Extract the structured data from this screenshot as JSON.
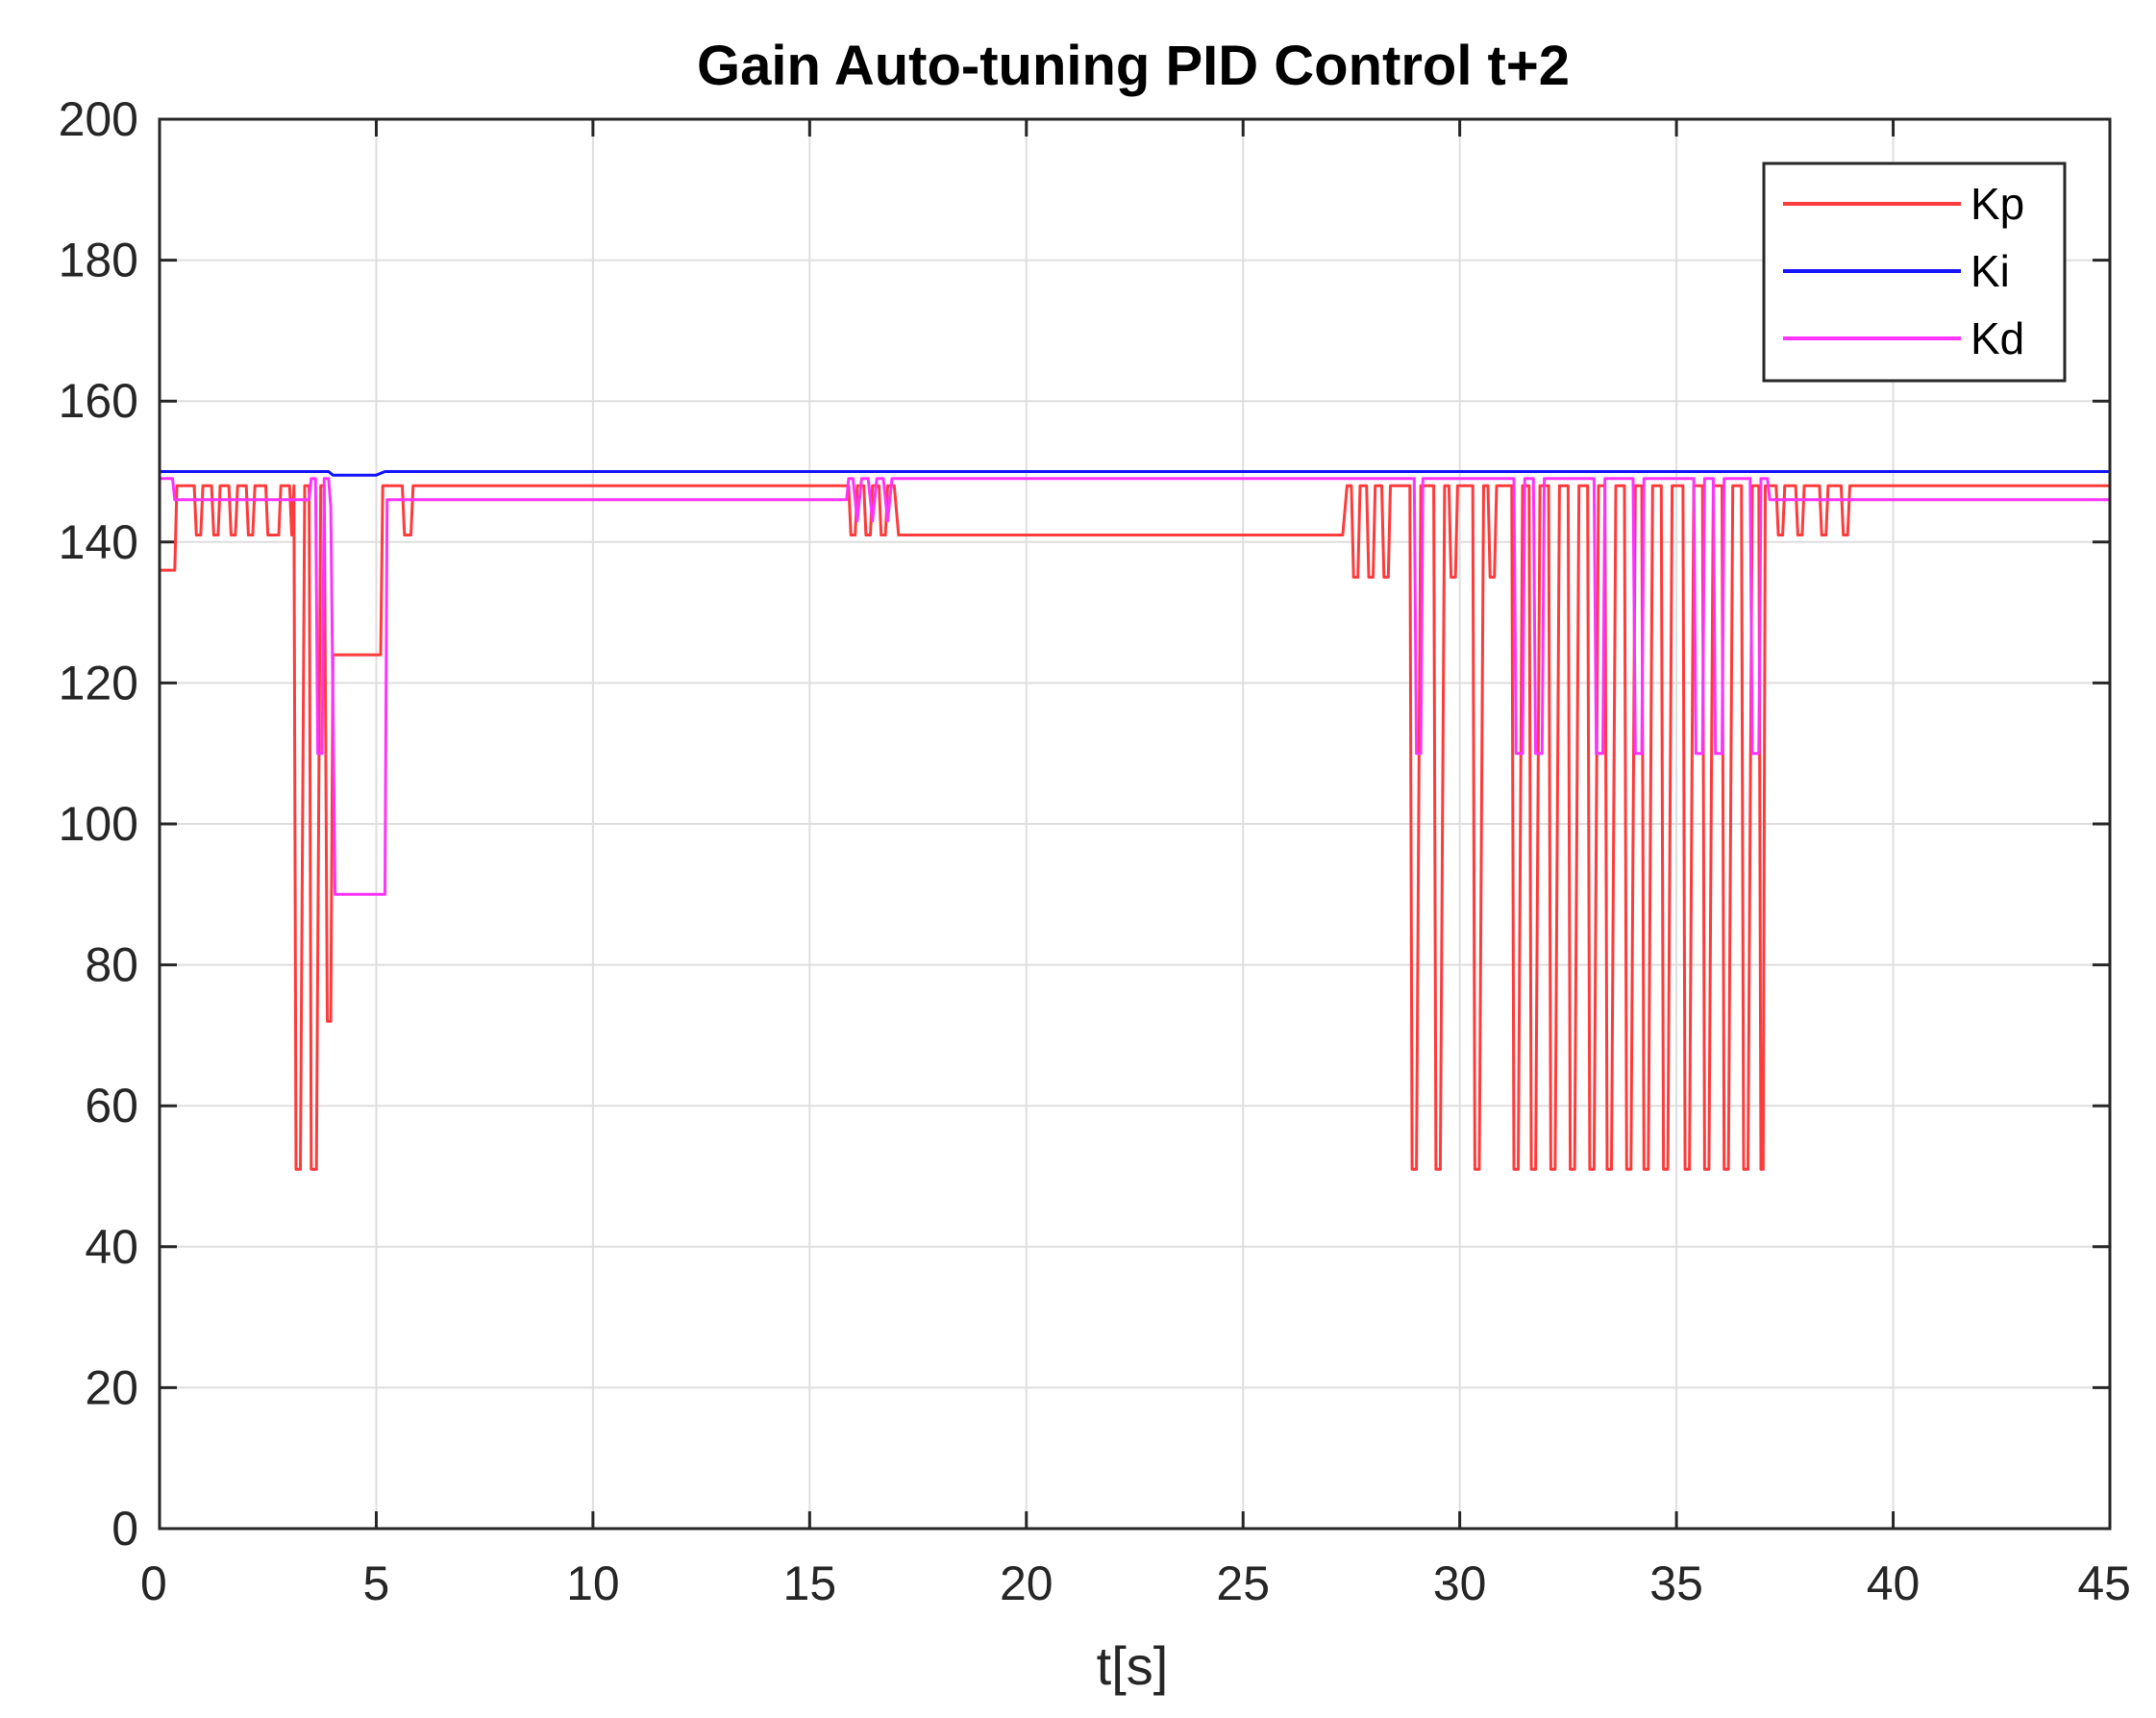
{
  "chart_data": {
    "type": "line",
    "title": "Gain Auto-tuning PID Control t+2",
    "xlabel": "t[s]",
    "ylabel": "",
    "xlim": [
      0,
      45
    ],
    "ylim": [
      0,
      200
    ],
    "xticks": [
      0,
      5,
      10,
      15,
      20,
      25,
      30,
      35,
      40,
      45
    ],
    "yticks": [
      0,
      20,
      40,
      60,
      80,
      100,
      120,
      140,
      160,
      180,
      200
    ],
    "grid": true,
    "legend_position": "top-right",
    "series": [
      {
        "name": "Kp",
        "color": "#ff3b3b",
        "points": [
          [
            0,
            136
          ],
          [
            0.35,
            136
          ],
          [
            0.4,
            148
          ],
          [
            0.5,
            148
          ],
          [
            0.8,
            148
          ],
          [
            0.85,
            141
          ],
          [
            0.95,
            141
          ],
          [
            1.0,
            148
          ],
          [
            1.2,
            148
          ],
          [
            1.25,
            141
          ],
          [
            1.35,
            141
          ],
          [
            1.4,
            148
          ],
          [
            1.6,
            148
          ],
          [
            1.65,
            141
          ],
          [
            1.75,
            141
          ],
          [
            1.8,
            148
          ],
          [
            2.0,
            148
          ],
          [
            2.05,
            141
          ],
          [
            2.15,
            141
          ],
          [
            2.2,
            148
          ],
          [
            2.45,
            148
          ],
          [
            2.5,
            141
          ],
          [
            2.75,
            141
          ],
          [
            2.8,
            148
          ],
          [
            3.0,
            148
          ],
          [
            3.05,
            141
          ],
          [
            3.1,
            148
          ],
          [
            3.15,
            51
          ],
          [
            3.25,
            51
          ],
          [
            3.35,
            148
          ],
          [
            3.45,
            148
          ],
          [
            3.5,
            51
          ],
          [
            3.62,
            51
          ],
          [
            3.72,
            148
          ],
          [
            3.8,
            148
          ],
          [
            3.87,
            72
          ],
          [
            3.95,
            72
          ],
          [
            4.0,
            124
          ],
          [
            5.1,
            124
          ],
          [
            5.15,
            148
          ],
          [
            5.6,
            148
          ],
          [
            5.65,
            141
          ],
          [
            5.8,
            141
          ],
          [
            5.85,
            148
          ],
          [
            15.9,
            148
          ],
          [
            15.95,
            141
          ],
          [
            16.05,
            141
          ],
          [
            16.1,
            148
          ],
          [
            16.25,
            148
          ],
          [
            16.3,
            141
          ],
          [
            16.4,
            141
          ],
          [
            16.45,
            148
          ],
          [
            16.6,
            148
          ],
          [
            16.65,
            141
          ],
          [
            16.75,
            141
          ],
          [
            16.8,
            148
          ],
          [
            16.95,
            148
          ],
          [
            17.05,
            141
          ],
          [
            27.3,
            141
          ],
          [
            27.4,
            148
          ],
          [
            27.5,
            148
          ],
          [
            27.55,
            135
          ],
          [
            27.65,
            135
          ],
          [
            27.7,
            148
          ],
          [
            27.85,
            148
          ],
          [
            27.9,
            135
          ],
          [
            28.0,
            135
          ],
          [
            28.05,
            148
          ],
          [
            28.2,
            148
          ],
          [
            28.25,
            135
          ],
          [
            28.35,
            135
          ],
          [
            28.4,
            148
          ],
          [
            28.85,
            148
          ],
          [
            28.9,
            51
          ],
          [
            29.0,
            51
          ],
          [
            29.1,
            148
          ],
          [
            29.4,
            148
          ],
          [
            29.45,
            51
          ],
          [
            29.55,
            51
          ],
          [
            29.65,
            148
          ],
          [
            29.75,
            148
          ],
          [
            29.8,
            135
          ],
          [
            29.9,
            135
          ],
          [
            29.95,
            148
          ],
          [
            30.3,
            148
          ],
          [
            30.35,
            51
          ],
          [
            30.45,
            51
          ],
          [
            30.55,
            148
          ],
          [
            30.65,
            148
          ],
          [
            30.7,
            135
          ],
          [
            30.8,
            135
          ],
          [
            30.85,
            148
          ],
          [
            31.2,
            148
          ],
          [
            31.25,
            51
          ],
          [
            31.35,
            51
          ],
          [
            31.45,
            148
          ],
          [
            31.6,
            148
          ],
          [
            31.65,
            51
          ],
          [
            31.75,
            51
          ],
          [
            31.85,
            148
          ],
          [
            32.05,
            148
          ],
          [
            32.1,
            51
          ],
          [
            32.2,
            51
          ],
          [
            32.3,
            148
          ],
          [
            32.5,
            148
          ],
          [
            32.55,
            51
          ],
          [
            32.65,
            51
          ],
          [
            32.75,
            148
          ],
          [
            32.95,
            148
          ],
          [
            33.0,
            51
          ],
          [
            33.1,
            51
          ],
          [
            33.2,
            148
          ],
          [
            33.35,
            148
          ],
          [
            33.4,
            51
          ],
          [
            33.5,
            51
          ],
          [
            33.6,
            148
          ],
          [
            33.8,
            148
          ],
          [
            33.85,
            51
          ],
          [
            33.95,
            51
          ],
          [
            34.05,
            148
          ],
          [
            34.2,
            148
          ],
          [
            34.25,
            51
          ],
          [
            34.35,
            51
          ],
          [
            34.45,
            148
          ],
          [
            34.65,
            148
          ],
          [
            34.7,
            51
          ],
          [
            34.8,
            51
          ],
          [
            34.9,
            148
          ],
          [
            35.15,
            148
          ],
          [
            35.2,
            51
          ],
          [
            35.3,
            51
          ],
          [
            35.4,
            148
          ],
          [
            35.6,
            148
          ],
          [
            35.65,
            51
          ],
          [
            35.75,
            51
          ],
          [
            35.85,
            148
          ],
          [
            36.05,
            148
          ],
          [
            36.1,
            51
          ],
          [
            36.2,
            51
          ],
          [
            36.3,
            148
          ],
          [
            36.5,
            148
          ],
          [
            36.55,
            51
          ],
          [
            36.65,
            51
          ],
          [
            36.75,
            148
          ],
          [
            36.9,
            148
          ],
          [
            36.95,
            51
          ],
          [
            37.0,
            51
          ],
          [
            37.05,
            148
          ],
          [
            37.3,
            148
          ],
          [
            37.35,
            141
          ],
          [
            37.45,
            141
          ],
          [
            37.5,
            148
          ],
          [
            37.75,
            148
          ],
          [
            37.8,
            141
          ],
          [
            37.9,
            141
          ],
          [
            37.95,
            148
          ],
          [
            38.3,
            148
          ],
          [
            38.35,
            141
          ],
          [
            38.45,
            141
          ],
          [
            38.5,
            148
          ],
          [
            38.8,
            148
          ],
          [
            38.85,
            141
          ],
          [
            38.95,
            141
          ],
          [
            39.0,
            148
          ],
          [
            45,
            148
          ]
        ]
      },
      {
        "name": "Ki",
        "color": "#1414ff",
        "points": [
          [
            0,
            150
          ],
          [
            3.9,
            150
          ],
          [
            4.0,
            149.5
          ],
          [
            5.0,
            149.5
          ],
          [
            5.2,
            150
          ],
          [
            45,
            150
          ]
        ]
      },
      {
        "name": "Kd",
        "color": "#ff33ff",
        "points": [
          [
            0,
            149
          ],
          [
            0.3,
            149
          ],
          [
            0.35,
            146
          ],
          [
            3.45,
            146
          ],
          [
            3.5,
            149
          ],
          [
            3.6,
            149
          ],
          [
            3.65,
            110
          ],
          [
            3.75,
            110
          ],
          [
            3.8,
            149
          ],
          [
            3.9,
            149
          ],
          [
            3.95,
            145
          ],
          [
            4.05,
            90
          ],
          [
            5.2,
            90
          ],
          [
            5.25,
            146
          ],
          [
            15.85,
            146
          ],
          [
            15.9,
            149
          ],
          [
            16.0,
            149
          ],
          [
            16.1,
            143
          ],
          [
            16.2,
            149
          ],
          [
            16.35,
            149
          ],
          [
            16.45,
            143
          ],
          [
            16.55,
            149
          ],
          [
            16.7,
            149
          ],
          [
            16.8,
            143
          ],
          [
            16.9,
            149
          ],
          [
            27.3,
            149
          ],
          [
            28.95,
            149
          ],
          [
            29.0,
            110
          ],
          [
            29.1,
            110
          ],
          [
            29.15,
            149
          ],
          [
            31.25,
            149
          ],
          [
            31.3,
            110
          ],
          [
            31.45,
            110
          ],
          [
            31.5,
            149
          ],
          [
            31.7,
            149
          ],
          [
            31.75,
            110
          ],
          [
            31.9,
            110
          ],
          [
            31.95,
            149
          ],
          [
            33.1,
            149
          ],
          [
            33.15,
            110
          ],
          [
            33.3,
            110
          ],
          [
            33.35,
            149
          ],
          [
            34.0,
            149
          ],
          [
            34.05,
            110
          ],
          [
            34.2,
            110
          ],
          [
            34.25,
            149
          ],
          [
            35.4,
            149
          ],
          [
            35.45,
            110
          ],
          [
            35.6,
            110
          ],
          [
            35.65,
            149
          ],
          [
            35.85,
            149
          ],
          [
            35.9,
            110
          ],
          [
            36.05,
            110
          ],
          [
            36.1,
            149
          ],
          [
            36.7,
            149
          ],
          [
            36.75,
            110
          ],
          [
            36.9,
            110
          ],
          [
            36.95,
            149
          ],
          [
            37.1,
            149
          ],
          [
            37.15,
            146
          ],
          [
            45,
            146
          ]
        ]
      }
    ]
  }
}
